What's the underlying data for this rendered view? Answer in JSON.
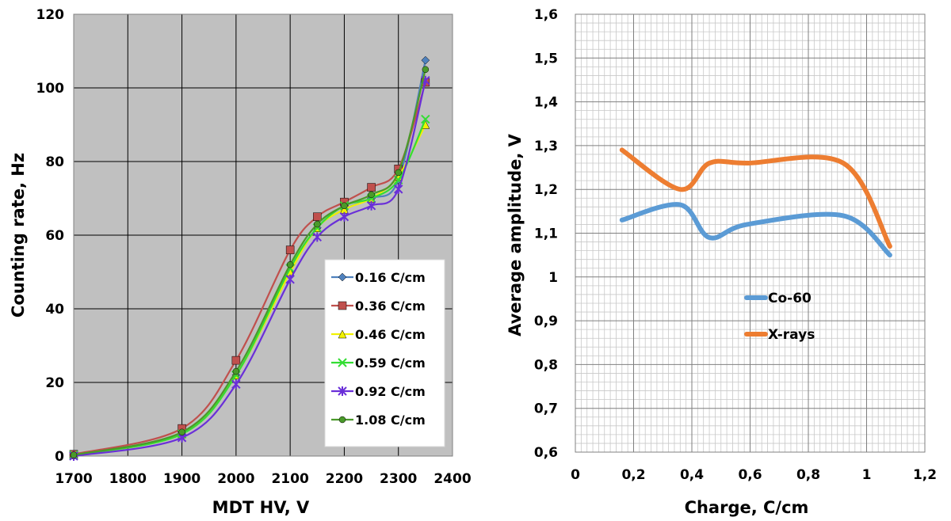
{
  "chart_data": [
    {
      "type": "line",
      "title": "",
      "xlabel": "MDT HV, V",
      "ylabel": "Counting rate, Hz",
      "xlim": [
        1700,
        2400
      ],
      "ylim": [
        0,
        120
      ],
      "x_ticks": [
        "1700",
        "1800",
        "1900",
        "2000",
        "2100",
        "2200",
        "2300",
        "2400"
      ],
      "y_ticks": [
        "0",
        "20",
        "40",
        "60",
        "80",
        "100",
        "120"
      ],
      "grid": true,
      "plot_background": "#c0c0c0",
      "legend_position": "bottom-right",
      "series": [
        {
          "name": "0.16 C/cm",
          "color": "#4f81bd",
          "marker": "diamond",
          "points": [
            [
              1700,
              0.3
            ],
            [
              1900,
              6
            ],
            [
              2000,
              22
            ],
            [
              2100,
              50
            ],
            [
              2150,
              62
            ],
            [
              2200,
              67
            ],
            [
              2250,
              70
            ],
            [
              2300,
              75
            ],
            [
              2350,
              107.5
            ]
          ]
        },
        {
          "name": "0.36 C/cm",
          "color": "#c0504d",
          "marker": "square",
          "points": [
            [
              1700,
              0.5
            ],
            [
              1900,
              7.5
            ],
            [
              2000,
              26
            ],
            [
              2100,
              56
            ],
            [
              2150,
              65
            ],
            [
              2200,
              69
            ],
            [
              2250,
              73
            ],
            [
              2300,
              78
            ],
            [
              2350,
              101.5
            ]
          ]
        },
        {
          "name": "0.46 C/cm",
          "color": "#f2f200",
          "marker": "triangle",
          "points": [
            [
              1700,
              0.3
            ],
            [
              1900,
              6
            ],
            [
              2000,
              22
            ],
            [
              2100,
              50
            ],
            [
              2150,
              62
            ],
            [
              2200,
              67
            ],
            [
              2250,
              70
            ],
            [
              2300,
              76
            ],
            [
              2350,
              90
            ]
          ]
        },
        {
          "name": "0.59 C/cm",
          "color": "#33dd33",
          "marker": "x",
          "points": [
            [
              1700,
              0.3
            ],
            [
              1900,
              6
            ],
            [
              2000,
              22
            ],
            [
              2100,
              51
            ],
            [
              2150,
              62
            ],
            [
              2200,
              68
            ],
            [
              2250,
              70
            ],
            [
              2300,
              75
            ],
            [
              2350,
              91.5
            ]
          ]
        },
        {
          "name": "0.92 C/cm",
          "color": "#6a2fd8",
          "marker": "star",
          "points": [
            [
              1700,
              0
            ],
            [
              1900,
              5
            ],
            [
              2000,
              19.5
            ],
            [
              2100,
              48
            ],
            [
              2150,
              59.5
            ],
            [
              2200,
              65
            ],
            [
              2250,
              68
            ],
            [
              2300,
              72.5
            ],
            [
              2350,
              102
            ]
          ]
        },
        {
          "name": "1.08 C/cm",
          "color": "#4a9a2a",
          "marker": "circle",
          "points": [
            [
              1700,
              0.3
            ],
            [
              1900,
              6.5
            ],
            [
              2000,
              23
            ],
            [
              2100,
              52
            ],
            [
              2150,
              63
            ],
            [
              2200,
              68
            ],
            [
              2250,
              71
            ],
            [
              2300,
              77
            ],
            [
              2350,
              105
            ]
          ]
        }
      ]
    },
    {
      "type": "line",
      "title": "",
      "xlabel": "Charge, C/cm",
      "ylabel": "Average amplitude, V",
      "xlim": [
        0,
        1.2
      ],
      "ylim": [
        0.6,
        1.6
      ],
      "x_ticks": [
        "0",
        "0,2",
        "0,4",
        "0,6",
        "0,8",
        "1",
        "1,2"
      ],
      "y_ticks": [
        "0,6",
        "0,7",
        "0,8",
        "0,9",
        "1",
        "1,1",
        "1,2",
        "1,3",
        "1,4",
        "1,5",
        "1,6"
      ],
      "grid": true,
      "legend_position": "center-left",
      "series": [
        {
          "name": "Co-60",
          "color": "#5b9bd5",
          "points": [
            [
              0.16,
              1.13
            ],
            [
              0.36,
              1.165
            ],
            [
              0.46,
              1.09
            ],
            [
              0.59,
              1.12
            ],
            [
              0.92,
              1.14
            ],
            [
              1.08,
              1.05
            ]
          ]
        },
        {
          "name": "X-rays",
          "color": "#ed7d31",
          "points": [
            [
              0.16,
              1.29
            ],
            [
              0.36,
              1.2
            ],
            [
              0.46,
              1.26
            ],
            [
              0.59,
              1.26
            ],
            [
              0.92,
              1.26
            ],
            [
              1.08,
              1.07
            ]
          ]
        }
      ]
    }
  ]
}
